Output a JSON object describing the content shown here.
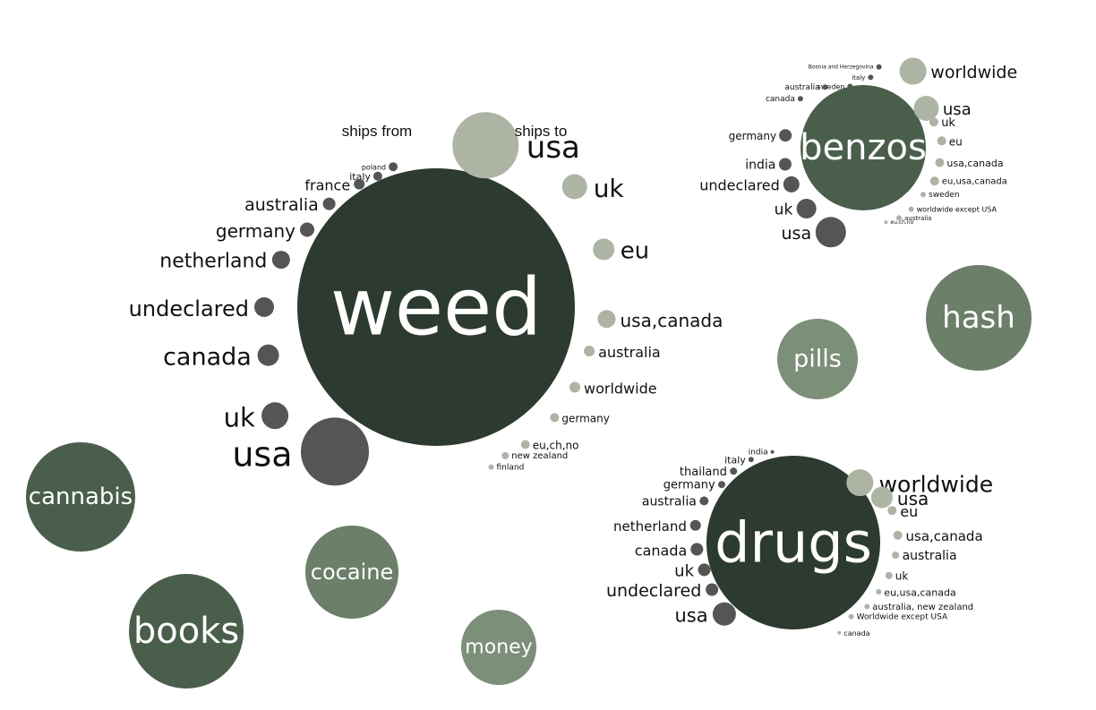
{
  "chart_data": {
    "type": "bubble",
    "title": "",
    "headers": {
      "ships_from": "ships from",
      "ships_to": "ships to"
    },
    "colors": {
      "from": "#555555",
      "to": "#adb4a4",
      "center": "#2d3a30",
      "mid": "#4a5e4c",
      "light": "#6b7f69",
      "lighter": "#7c8f78"
    },
    "categories": [
      {
        "name": "weed",
        "size": 100,
        "ships_from": [
          {
            "label": "poland",
            "value": 1
          },
          {
            "label": "italy",
            "value": 1.5
          },
          {
            "label": "france",
            "value": 3
          },
          {
            "label": "australia",
            "value": 3
          },
          {
            "label": "germany",
            "value": 4
          },
          {
            "label": "netherland",
            "value": 6
          },
          {
            "label": "undeclared",
            "value": 7
          },
          {
            "label": "canada",
            "value": 8
          },
          {
            "label": "uk",
            "value": 12
          },
          {
            "label": "usa",
            "value": 80
          }
        ],
        "ships_to": [
          {
            "label": "usa",
            "value": 80
          },
          {
            "label": "uk",
            "value": 10
          },
          {
            "label": "eu",
            "value": 8
          },
          {
            "label": "usa,canada",
            "value": 5
          },
          {
            "label": "australia",
            "value": 2.5
          },
          {
            "label": "worldwide",
            "value": 2
          },
          {
            "label": "germany",
            "value": 1.5
          },
          {
            "label": "eu,ch,no",
            "value": 1.5
          },
          {
            "label": "new zealand",
            "value": 0.7
          },
          {
            "label": "finland",
            "value": 0.4
          }
        ]
      },
      {
        "name": "benzos",
        "size": 50,
        "ships_from": [
          {
            "label": "Bosnia and Herzegovina",
            "value": 0.3
          },
          {
            "label": "italy",
            "value": 0.5
          },
          {
            "label": "sweden",
            "value": 0.5
          },
          {
            "label": "australia",
            "value": 0.6
          },
          {
            "label": "canada",
            "value": 0.8
          },
          {
            "label": "germany",
            "value": 3
          },
          {
            "label": "india",
            "value": 3
          },
          {
            "label": "undeclared",
            "value": 4
          },
          {
            "label": "uk",
            "value": 6
          },
          {
            "label": "usa",
            "value": 15
          }
        ],
        "ships_to": [
          {
            "label": "worldwide",
            "value": 11
          },
          {
            "label": "usa",
            "value": 10
          },
          {
            "label": "uk",
            "value": 1.5
          },
          {
            "label": "eu",
            "value": 1.5
          },
          {
            "label": "usa,canada",
            "value": 1
          },
          {
            "label": "eu,usa,canada",
            "value": 0.9
          },
          {
            "label": "sweden",
            "value": 0.5
          },
          {
            "label": "worldwide except USA",
            "value": 0.3
          },
          {
            "label": "australia",
            "value": 0.3
          },
          {
            "label": "eu,ch,no",
            "value": 0.2
          }
        ]
      },
      {
        "name": "drugs",
        "size": 80,
        "ships_from": [
          {
            "label": "india",
            "value": 0.3
          },
          {
            "label": "italy",
            "value": 0.5
          },
          {
            "label": "thailand",
            "value": 0.8
          },
          {
            "label": "germany",
            "value": 1.5
          },
          {
            "label": "australia",
            "value": 2
          },
          {
            "label": "netherland",
            "value": 3
          },
          {
            "label": "canada",
            "value": 4
          },
          {
            "label": "uk",
            "value": 4
          },
          {
            "label": "undeclared",
            "value": 5
          },
          {
            "label": "usa",
            "value": 15
          }
        ],
        "ships_to": [
          {
            "label": "worldwide",
            "value": 17
          },
          {
            "label": "usa",
            "value": 10
          },
          {
            "label": "eu",
            "value": 2.5
          },
          {
            "label": "usa,canada",
            "value": 1.6
          },
          {
            "label": "australia",
            "value": 1.4
          },
          {
            "label": "uk",
            "value": 1
          },
          {
            "label": "eu,usa,canada",
            "value": 0.5
          },
          {
            "label": "australia, new zealand",
            "value": 0.4
          },
          {
            "label": "Worldwide except USA",
            "value": 0.3
          },
          {
            "label": "canada",
            "value": 0.2
          }
        ]
      },
      {
        "name": "hash",
        "size": 30
      },
      {
        "name": "pills",
        "size": 25
      },
      {
        "name": "cannabis",
        "size": 32
      },
      {
        "name": "cocaine",
        "size": 27
      },
      {
        "name": "books",
        "size": 36
      },
      {
        "name": "money",
        "size": 19
      }
    ]
  }
}
